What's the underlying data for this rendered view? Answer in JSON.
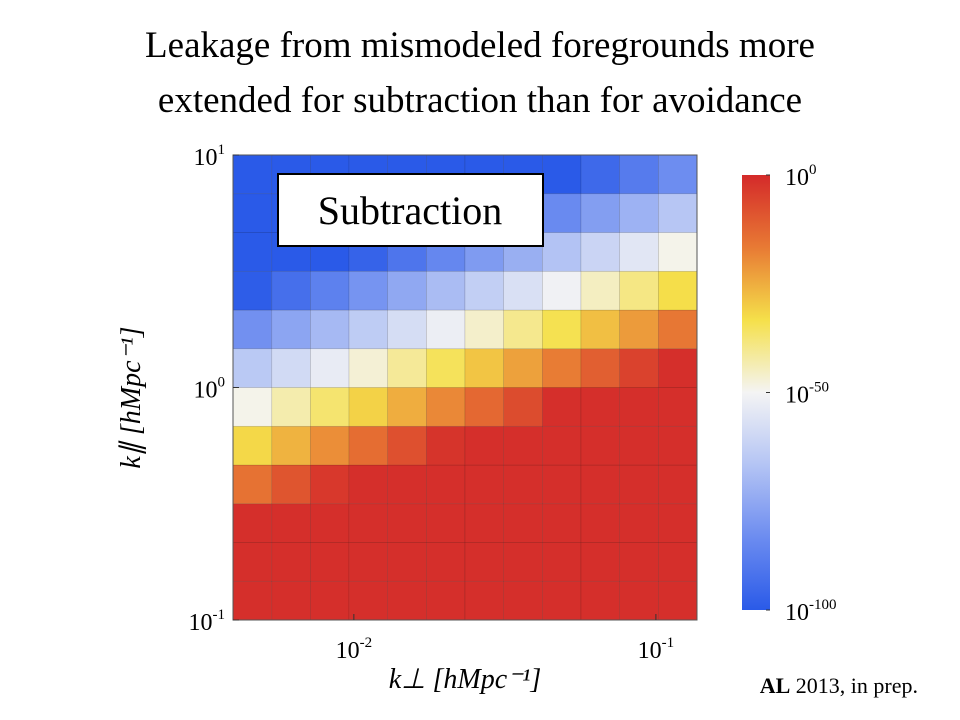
{
  "title_lines": [
    "Leakage from mismodeled foregrounds more",
    "extended for subtraction than for avoidance"
  ],
  "chart_data": {
    "type": "heatmap",
    "x_label": "k⊥ [hMpc⁻¹]",
    "y_label": "k∥ [hMpc⁻¹]",
    "annotation": "Subtraction",
    "x_log": true,
    "y_log": true,
    "xlim": [
      0.00398,
      0.1368
    ],
    "ylim": [
      0.1,
      10
    ],
    "xticks": [
      {
        "value": 0.01,
        "label": "10",
        "exponent": "-2"
      },
      {
        "value": 0.1,
        "label": "10",
        "exponent": "-1"
      }
    ],
    "yticks": [
      {
        "value": 0.1,
        "label": "10",
        "exponent": "-1"
      },
      {
        "value": 1,
        "label": "10",
        "exponent": "0"
      },
      {
        "value": 10,
        "label": "10",
        "exponent": "1"
      }
    ],
    "x_edges": [
      0.00398,
      0.00535,
      0.00718,
      0.00964,
      0.01294,
      0.01738,
      0.02333,
      0.03133,
      0.04207,
      0.05649,
      0.07586,
      0.1019,
      0.1368
    ],
    "y_edges": [
      0.1,
      0.1468,
      0.2154,
      0.3162,
      0.4642,
      0.6813,
      1,
      1.468,
      2.154,
      3.162,
      4.642,
      6.813,
      10
    ],
    "z": [
      [
        0.1,
        0.1,
        0.1,
        0.1,
        0.1,
        0.1,
        0.1,
        0.1,
        0.1,
        0.1,
        0.1,
        0.1
      ],
      [
        0.1,
        0.1,
        0.1,
        0.1,
        0.1,
        0.1,
        0.1,
        0.1,
        0.1,
        0.1,
        0.1,
        0.1
      ],
      [
        0.1,
        0.1,
        0.1,
        0.1,
        0.1,
        0.1,
        0.1,
        0.1,
        0.1,
        0.1,
        0.1,
        0.1
      ],
      [
        1e-15,
        1e-09,
        0.001,
        0.1,
        0.1,
        0.1,
        0.1,
        0.1,
        0.1,
        0.1,
        0.1,
        0.1
      ],
      [
        1e-32,
        1e-26,
        1e-20,
        1e-14,
        1e-08,
        0.01,
        0.1,
        0.1,
        0.1,
        0.1,
        0.1,
        0.1
      ],
      [
        1e-49,
        1e-43,
        1e-37,
        1e-31,
        1e-25,
        1e-19,
        1e-13,
        1e-07,
        0.1,
        0.1,
        0.1,
        0.1
      ],
      [
        1e-65,
        1e-59,
        1e-53,
        1e-47,
        1e-41,
        1e-35,
        1e-29,
        1e-23,
        1e-17,
        1e-11,
        1e-05,
        0.1
      ],
      [
        1e-82,
        1e-76,
        1e-70,
        1e-64,
        1e-58,
        1e-52,
        1e-46,
        1e-40,
        1e-34,
        1e-28,
        1e-22,
        1e-16
      ],
      [
        1e-99,
        1e-93,
        1e-87,
        1e-81,
        1e-75,
        1e-69,
        1e-63,
        1e-57,
        1e-51,
        1e-45,
        1e-39,
        1e-33
      ],
      [
        1e-100,
        1e-100,
        1e-100,
        1e-97,
        1e-91,
        1e-85,
        1e-79,
        1e-73,
        1e-67,
        1e-61,
        1e-55,
        1e-49
      ],
      [
        1e-100,
        1e-100,
        1e-100,
        1e-100,
        1e-100,
        1e-100,
        1e-96,
        1e-90,
        1e-84,
        1e-78,
        1e-72,
        1e-66
      ],
      [
        1e-100,
        1e-100,
        1e-100,
        1e-100,
        1e-100,
        1e-100,
        1e-100,
        1e-100,
        1e-100,
        1e-95,
        1e-89,
        1e-83
      ]
    ],
    "clim": [
      1e-100,
      1
    ],
    "c_log": true,
    "cticks": [
      {
        "value": 1,
        "label": "10",
        "exponent": "0"
      },
      {
        "value": 1e-50,
        "label": "10",
        "exponent": "-50"
      },
      {
        "value": 1e-100,
        "label": "10",
        "exponent": "-100"
      }
    ],
    "colormap": [
      "#2a5ae8",
      "#6c8cf0",
      "#b4c4f4",
      "#f4f4f4",
      "#f5e04a",
      "#e87a34",
      "#d42a2a"
    ]
  },
  "citation": {
    "author": "AL",
    "rest": "2013, in prep."
  }
}
